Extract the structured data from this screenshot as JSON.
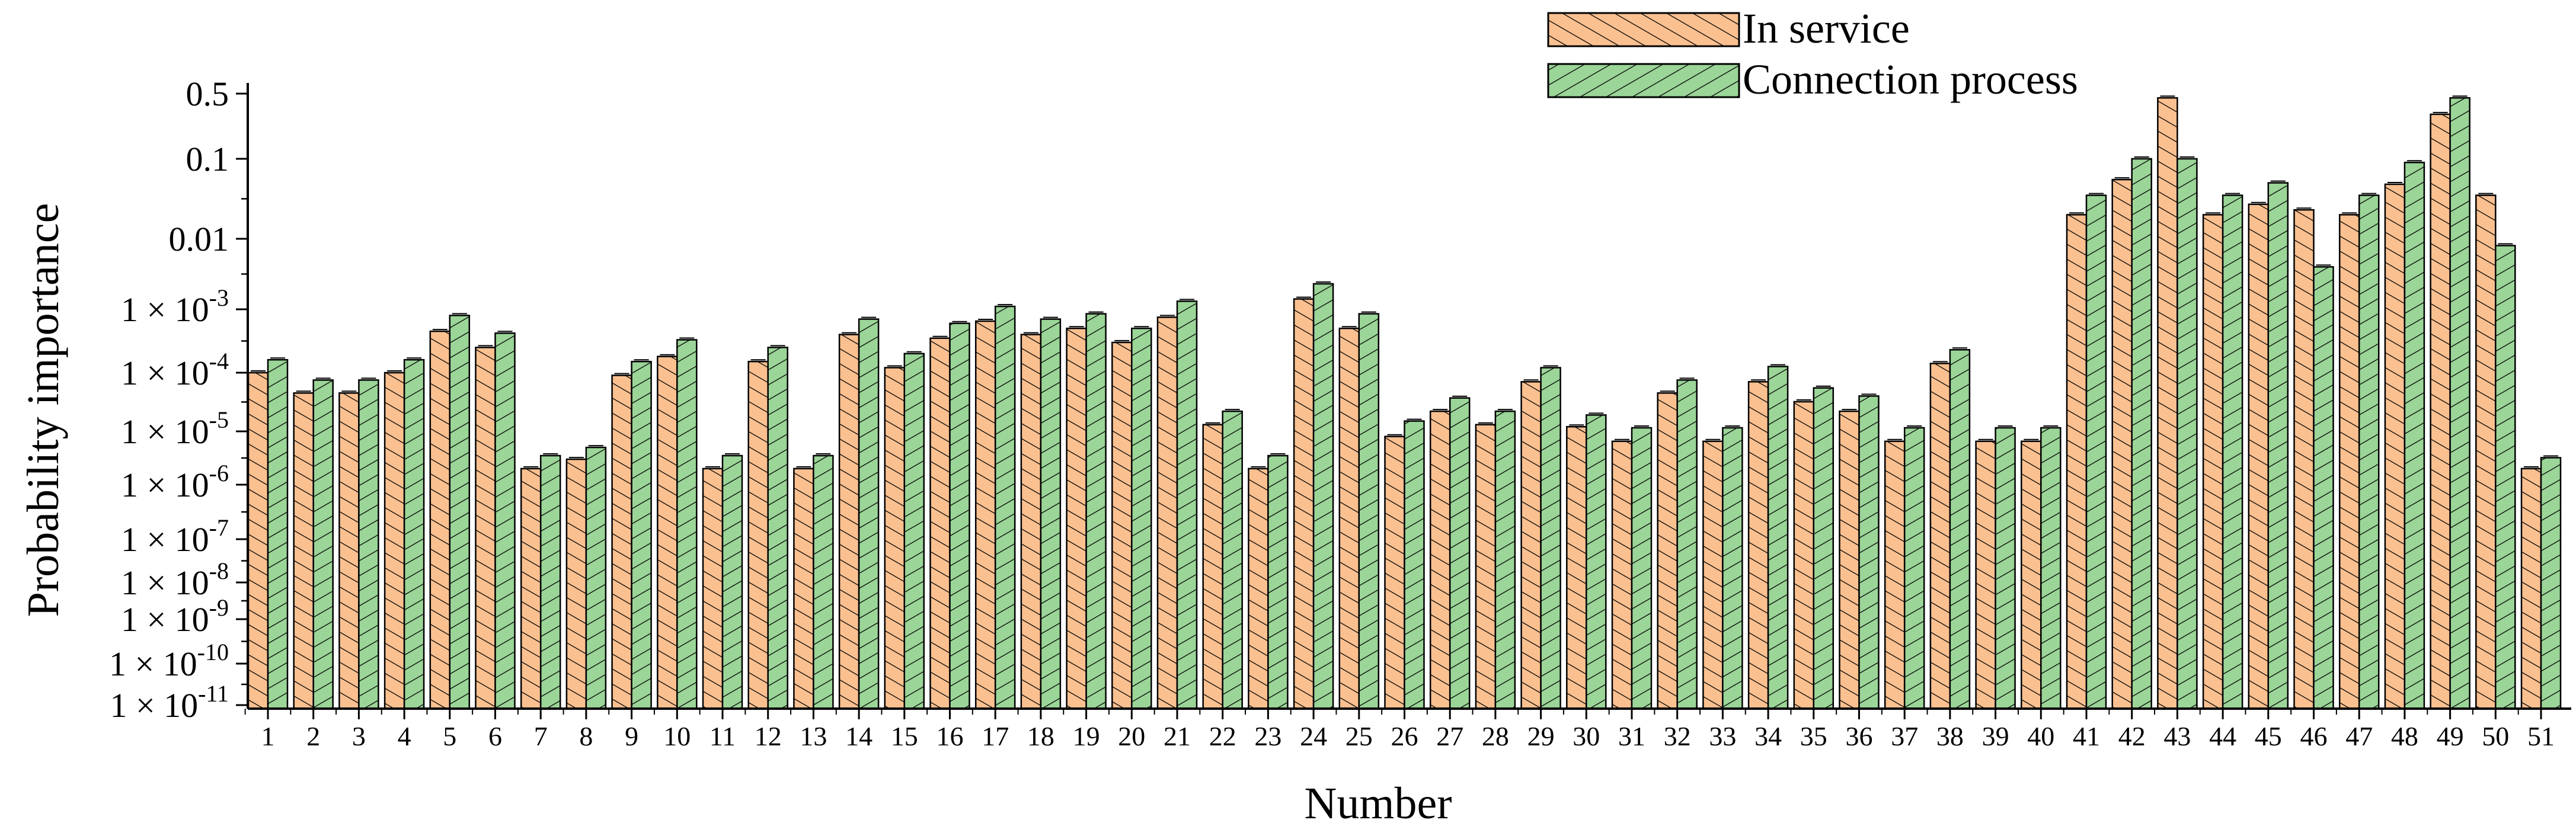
{
  "chart_data": {
    "type": "bar",
    "xlabel": "Number",
    "ylabel": "Probability importance",
    "yscale": "log",
    "ylim": [
      1e-11,
      0.6
    ],
    "grid": false,
    "legend_position": "top-right",
    "y_ticks": [
      {
        "value": 1e-11,
        "label": "1 × 10",
        "exp": "-11"
      },
      {
        "value": 1e-10,
        "label": "1 × 10",
        "exp": "-10"
      },
      {
        "value": 1e-09,
        "label": "1 × 10",
        "exp": "-9"
      },
      {
        "value": 1e-08,
        "label": "1 × 10",
        "exp": "-8"
      },
      {
        "value": 1e-07,
        "label": "1 × 10",
        "exp": "-7"
      },
      {
        "value": 1e-06,
        "label": "1 × 10",
        "exp": "-6"
      },
      {
        "value": 1e-05,
        "label": "1 × 10",
        "exp": "-5"
      },
      {
        "value": 0.0001,
        "label": "1 × 10",
        "exp": "-4"
      },
      {
        "value": 0.001,
        "label": "1 × 10",
        "exp": "-3"
      },
      {
        "value": 0.01,
        "label": "0.01",
        "exp": ""
      },
      {
        "value": 0.1,
        "label": "0.1",
        "exp": ""
      },
      {
        "value": 0.5,
        "label": "0.5",
        "exp": ""
      }
    ],
    "categories": [
      "1",
      "2",
      "3",
      "4",
      "5",
      "6",
      "7",
      "8",
      "9",
      "10",
      "11",
      "12",
      "13",
      "14",
      "15",
      "16",
      "17",
      "18",
      "19",
      "20",
      "21",
      "22",
      "23",
      "24",
      "25",
      "26",
      "27",
      "28",
      "29",
      "30",
      "31",
      "32",
      "33",
      "34",
      "35",
      "36",
      "37",
      "38",
      "39",
      "40",
      "41",
      "42",
      "43",
      "44",
      "45",
      "46",
      "47",
      "48",
      "49",
      "50",
      "51"
    ],
    "series": [
      {
        "name": "In service",
        "color": "#FAC090",
        "hatch": "back-diagonal",
        "values": [
          0.0001,
          4.5e-05,
          4.5e-05,
          0.0001,
          0.00045,
          0.00025,
          2e-06,
          3e-06,
          9e-05,
          0.00018,
          2e-06,
          0.00015,
          2e-06,
          0.0004,
          0.00012,
          0.00035,
          0.00065,
          0.0004,
          0.0005,
          0.0003,
          0.00075,
          1.3e-05,
          2e-06,
          0.0014,
          0.0005,
          8e-06,
          2.2e-05,
          1.3e-05,
          7e-05,
          1.2e-05,
          6.5e-06,
          4.5e-05,
          6.5e-06,
          7e-05,
          3.2e-05,
          2.2e-05,
          6.5e-06,
          0.00014,
          6.5e-06,
          6.5e-06,
          0.02,
          0.055,
          0.45,
          0.02,
          0.027,
          0.023,
          0.02,
          0.048,
          0.3,
          0.035,
          2e-06
        ]
      },
      {
        "name": "Connection process",
        "color": "#9BD598",
        "hatch": "forward-diagonal",
        "values": [
          0.00016,
          7.5e-05,
          7.5e-05,
          0.00016,
          0.0008,
          0.00042,
          3.5e-06,
          5e-06,
          0.00015,
          0.00033,
          3.5e-06,
          0.00025,
          3.5e-06,
          0.0007,
          0.0002,
          0.0006,
          0.0011,
          0.0007,
          0.00085,
          0.0005,
          0.0013,
          2.2e-05,
          3.5e-06,
          0.0023,
          0.00085,
          1.5e-05,
          3.7e-05,
          2.2e-05,
          0.00012,
          1.9e-05,
          1.15e-05,
          7.5e-05,
          1.15e-05,
          0.000125,
          5.5e-05,
          4e-05,
          1.15e-05,
          0.00023,
          1.15e-05,
          1.15e-05,
          0.035,
          0.1,
          0.1,
          0.035,
          0.05,
          0.004,
          0.035,
          0.09,
          0.45,
          0.008,
          3.2e-06
        ]
      }
    ]
  }
}
